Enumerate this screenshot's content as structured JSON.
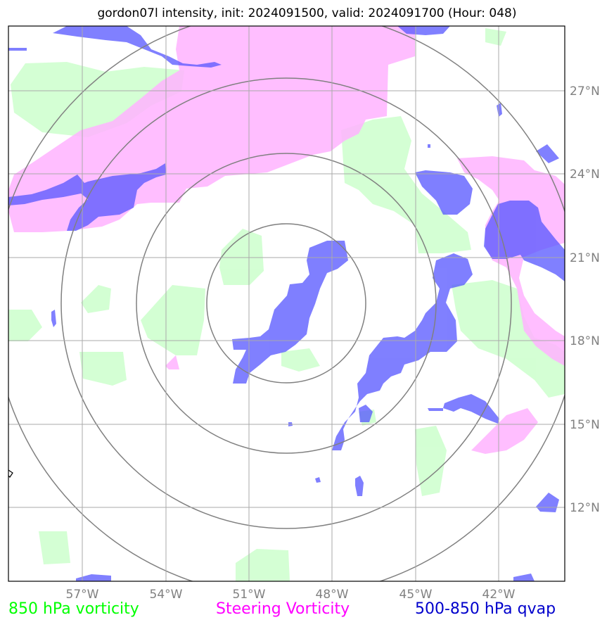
{
  "title": "gordon07l intensity, init: 2024091500, valid: 2024091700 (Hour: 048)",
  "lon_labels": [
    "57°W",
    "54°W",
    "51°W",
    "48°W",
    "45°W",
    "42°W"
  ],
  "lat_labels": [
    "27°N",
    "24°N",
    "21°N",
    "18°N",
    "15°N",
    "12°N"
  ],
  "legend": {
    "vort850": "850 hPa vorticity",
    "steering": "Steering Vorticity",
    "qvap": "500-850 hPa qvap"
  },
  "colors": {
    "vort850": "#ccffcc",
    "steering": "#ffb3ff",
    "qvap": "#5555ff",
    "grid": "#999999",
    "rings": "#808080"
  }
}
